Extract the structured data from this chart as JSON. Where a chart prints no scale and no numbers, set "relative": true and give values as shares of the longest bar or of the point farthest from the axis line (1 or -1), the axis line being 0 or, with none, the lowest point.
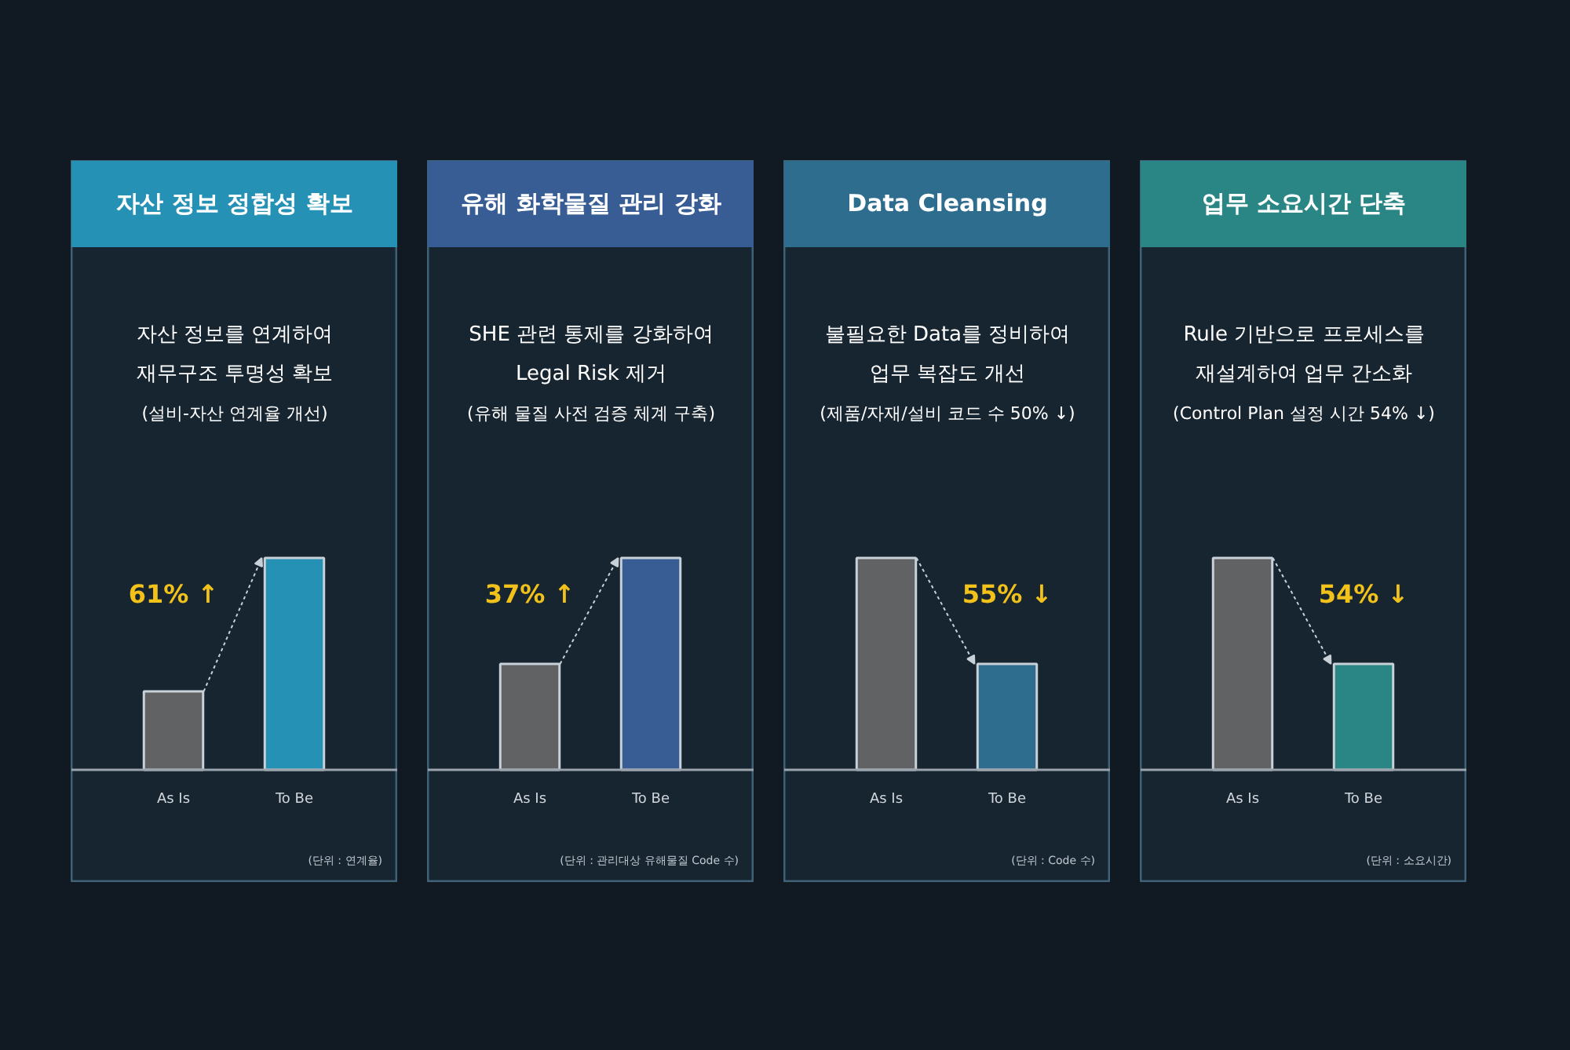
{
  "chart_data": [
    {
      "type": "bar",
      "title": "자산 정보 정합성 확보",
      "subtitle": "자산 정보를 연계하여\n재무구조 투명성 확보",
      "categories": [
        "As Is",
        "To Be"
      ],
      "values": [
        0.37,
        1
      ],
      "colors": [
        "#606264",
        "#2591b5"
      ],
      "relative": true,
      "annotations": [
        "(설비-자산 연계율 개선)",
        "61% ↑",
        "(단위 : 연계율)"
      ]
    },
    {
      "type": "bar",
      "title": "유해 화학물질 관리 강화",
      "subtitle": "SHE 관련 통제를 강화하여\nLegal Risk 제거",
      "categories": [
        "As Is",
        "To Be"
      ],
      "values": [
        0.5,
        1
      ],
      "colors": [
        "#606264",
        "#375d94"
      ],
      "relative": true,
      "annotations": [
        "(유해 물질 사전 검증 체계 구축)",
        "37% ↑",
        "(단위 : 관리대상 유해물질 Code 수)"
      ]
    },
    {
      "type": "bar",
      "title": "Data Cleansing",
      "subtitle": "불필요한 Data를 정비하여\n업무 복잡도 개선",
      "categories": [
        "As Is",
        "To Be"
      ],
      "values": [
        1,
        0.5
      ],
      "colors": [
        "#606264",
        "#2e6d8e"
      ],
      "relative": true,
      "annotations": [
        "(제품/자재/설비 코드 수 50% ↓)",
        "55% ↓",
        "(단위 : Code 수)"
      ]
    },
    {
      "type": "bar",
      "title": "업무 소요시간 단축",
      "subtitle": "Rule 기반으로 프로세스를\n재설계하여 업무 간소화",
      "categories": [
        "As Is",
        "To Be"
      ],
      "values": [
        1,
        0.5
      ],
      "colors": [
        "#606264",
        "#2a8585"
      ],
      "relative": true,
      "annotations": [
        "(Control Plan 설정 시간 54% ↓)",
        "54% ↓",
        "(단위 : 소요시간)"
      ]
    }
  ]
}
